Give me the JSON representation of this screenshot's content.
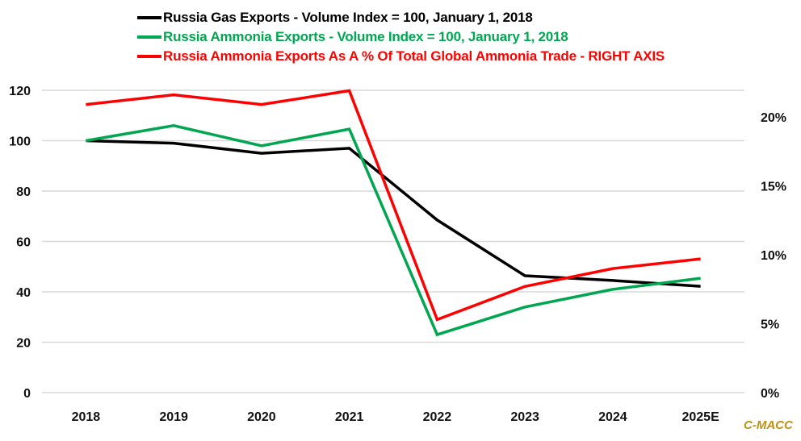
{
  "chart_data": {
    "type": "line",
    "title": "",
    "categories": [
      "2018",
      "2019",
      "2020",
      "2021",
      "2022",
      "2023",
      "2024",
      "2025E"
    ],
    "left_axis": {
      "ylim": [
        0,
        120
      ],
      "ticks": [
        "0",
        "20",
        "40",
        "60",
        "80",
        "100",
        "120"
      ],
      "tick_values": [
        0,
        20,
        40,
        60,
        80,
        100,
        120
      ]
    },
    "right_axis": {
      "ylim": [
        0,
        25
      ],
      "ticks": [
        "0%",
        "5%",
        "10%",
        "15%",
        "20%"
      ],
      "tick_values": [
        0,
        5,
        10,
        15,
        20
      ]
    },
    "grid": true,
    "legend_position": "top",
    "series": [
      {
        "name": "Russia Gas Exports - Volume Index = 100, January 1, 2018",
        "color": "#000000",
        "axis": "left",
        "values": [
          100,
          99,
          95,
          97,
          68.5,
          46.4,
          44.5,
          42.2
        ]
      },
      {
        "name": "Russia Ammonia Exports - Volume Index = 100, January 1, 2018",
        "color": "#00a650",
        "axis": "left",
        "values": [
          100,
          106,
          98,
          104.6,
          23,
          34,
          41,
          45.4
        ]
      },
      {
        "name": "Russia Ammonia Exports As A % Of Total Global Ammonia Trade - RIGHT AXIS",
        "color": "#ff0000",
        "axis": "right",
        "values": [
          20.9,
          21.6,
          20.9,
          21.9,
          5.3,
          7.7,
          9.0,
          9.7
        ]
      }
    ]
  },
  "watermark": "C-MACC"
}
